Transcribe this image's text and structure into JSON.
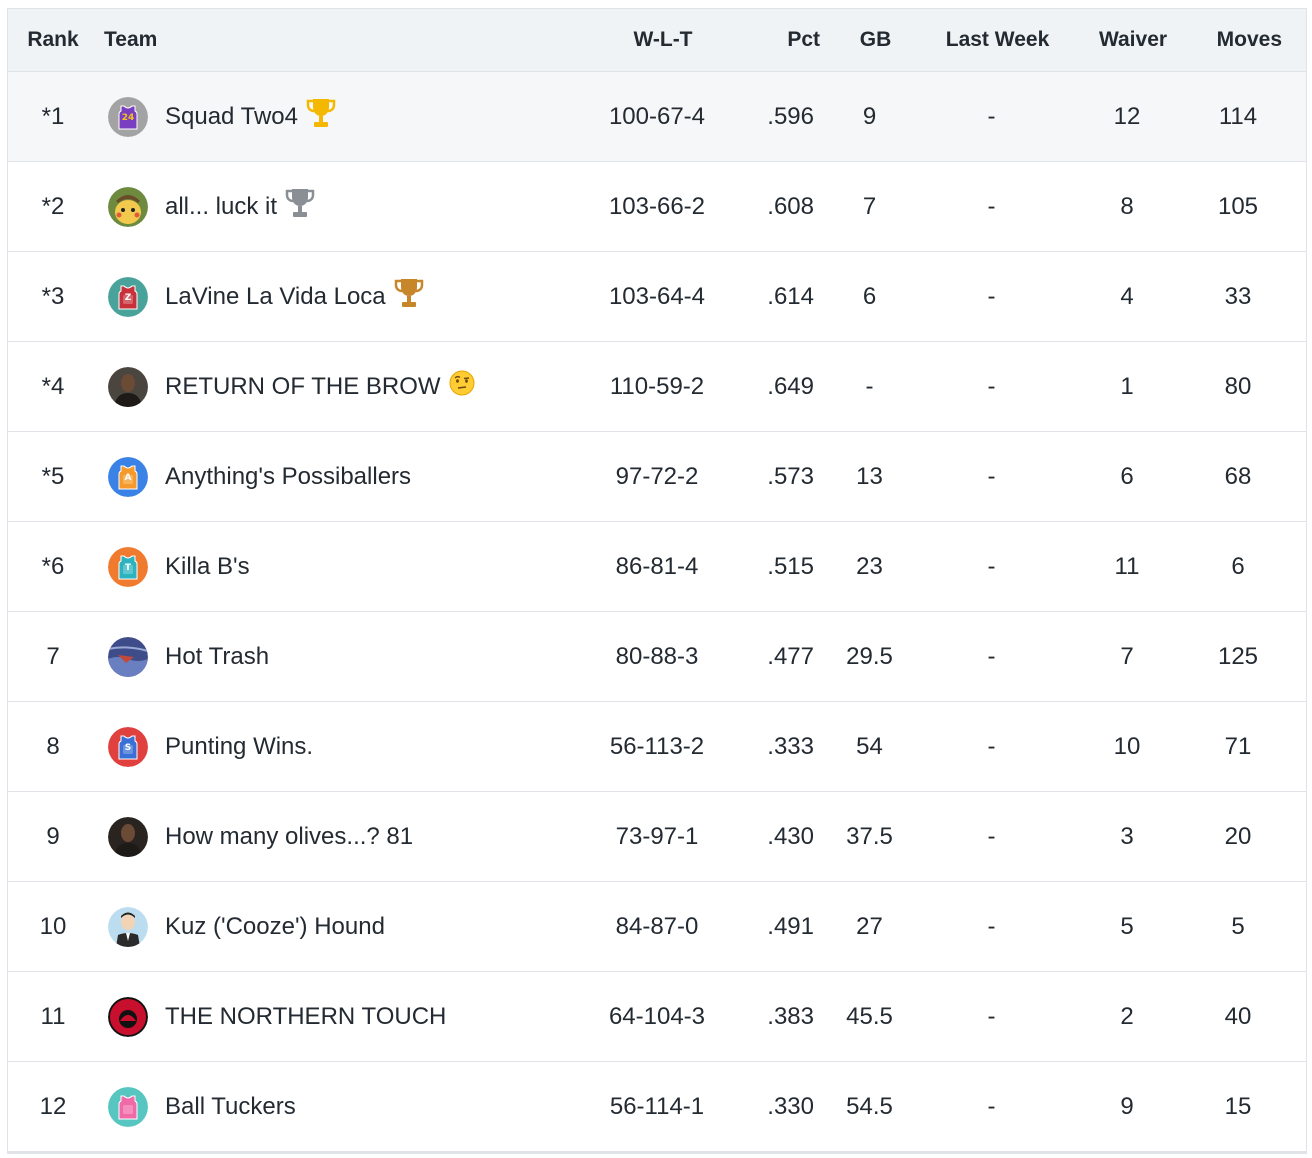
{
  "columns": {
    "rank": "Rank",
    "team": "Team",
    "wlt": "W-L-T",
    "pct": "Pct",
    "gb": "GB",
    "last_week": "Last Week",
    "waiver": "Waiver",
    "moves": "Moves"
  },
  "rows": [
    {
      "rank": "*1",
      "team": "Squad Two4",
      "wlt": "100-67-4",
      "pct": ".596",
      "gb": "9",
      "last_week": "-",
      "waiver": "12",
      "moves": "114",
      "avatar": "jersey-24-avatar",
      "avatar_color": "#a3a3a3",
      "badge": "gold-trophy-icon"
    },
    {
      "rank": "*2",
      "team": "all... luck it",
      "wlt": "103-66-2",
      "pct": ".608",
      "gb": "7",
      "last_week": "-",
      "waiver": "8",
      "moves": "105",
      "avatar": "pikachu-photo-avatar",
      "avatar_color": "#5a7b3b",
      "badge": "silver-trophy-icon"
    },
    {
      "rank": "*3",
      "team": "LaVine La Vida Loca",
      "wlt": "103-64-4",
      "pct": ".614",
      "gb": "6",
      "last_week": "-",
      "waiver": "4",
      "moves": "33",
      "avatar": "jersey-z-avatar",
      "avatar_color": "#4aa39b",
      "badge": "bronze-trophy-icon"
    },
    {
      "rank": "*4",
      "team": "RETURN OF THE BROW",
      "wlt": "110-59-2",
      "pct": ".649",
      "gb": "-",
      "last_week": "-",
      "waiver": "1",
      "moves": "80",
      "avatar": "player-photo-avatar",
      "avatar_color": "#4b4540",
      "badge": "raised-eyebrow-emoji"
    },
    {
      "rank": "*5",
      "team": "Anything's Possiballers",
      "wlt": "97-72-2",
      "pct": ".573",
      "gb": "13",
      "last_week": "-",
      "waiver": "6",
      "moves": "68",
      "avatar": "jersey-a-avatar",
      "avatar_color": "#3b82e6",
      "badge": ""
    },
    {
      "rank": "*6",
      "team": "Killa B's",
      "wlt": "86-81-4",
      "pct": ".515",
      "gb": "23",
      "last_week": "-",
      "waiver": "11",
      "moves": "6",
      "avatar": "jersey-t-avatar",
      "avatar_color": "#f07a2e",
      "badge": ""
    },
    {
      "rank": "7",
      "team": "Hot Trash",
      "wlt": "80-88-3",
      "pct": ".477",
      "gb": "29.5",
      "last_week": "-",
      "waiver": "7",
      "moves": "125",
      "avatar": "painting-avatar",
      "avatar_color": "#4a5a9a",
      "badge": ""
    },
    {
      "rank": "8",
      "team": "Punting Wins.",
      "wlt": "56-113-2",
      "pct": ".333",
      "gb": "54",
      "last_week": "-",
      "waiver": "10",
      "moves": "71",
      "avatar": "jersey-s-avatar",
      "avatar_color": "#e0403e",
      "badge": ""
    },
    {
      "rank": "9",
      "team": "How many olives...? 81",
      "wlt": "73-97-1",
      "pct": ".430",
      "gb": "37.5",
      "last_week": "-",
      "waiver": "3",
      "moves": "20",
      "avatar": "portrait-photo-avatar",
      "avatar_color": "#2a2420",
      "badge": ""
    },
    {
      "rank": "10",
      "team": "Kuz ('Cooze') Hound",
      "wlt": "84-87-0",
      "pct": ".491",
      "gb": "27",
      "last_week": "-",
      "waiver": "5",
      "moves": "5",
      "avatar": "cartoon-suit-avatar",
      "avatar_color": "#bcdcf0",
      "badge": ""
    },
    {
      "rank": "11",
      "team": "THE NORTHERN TOUCH",
      "wlt": "64-104-3",
      "pct": ".383",
      "gb": "45.5",
      "last_week": "-",
      "waiver": "2",
      "moves": "40",
      "avatar": "raptors-logo-avatar",
      "avatar_color": "#c8102e",
      "badge": ""
    },
    {
      "rank": "12",
      "team": "Ball Tuckers",
      "wlt": "56-114-1",
      "pct": ".330",
      "gb": "54.5",
      "last_week": "-",
      "waiver": "9",
      "moves": "15",
      "avatar": "jersey-pink-avatar",
      "avatar_color": "#58c6c0",
      "badge": ""
    }
  ],
  "jersey_letters": {
    "jersey-24-avatar": "24",
    "jersey-z-avatar": "Z",
    "jersey-a-avatar": "A",
    "jersey-t-avatar": "T",
    "jersey-s-avatar": "S"
  },
  "colors": {
    "header_bg": "#f0f3f5",
    "border": "#e0e4e9",
    "highlight_row_bg": "#f5f7f9",
    "text": "#232a31",
    "gold_trophy": "#f5b800",
    "silver_trophy": "#8a8f96",
    "bronze_trophy": "#c8862a"
  }
}
